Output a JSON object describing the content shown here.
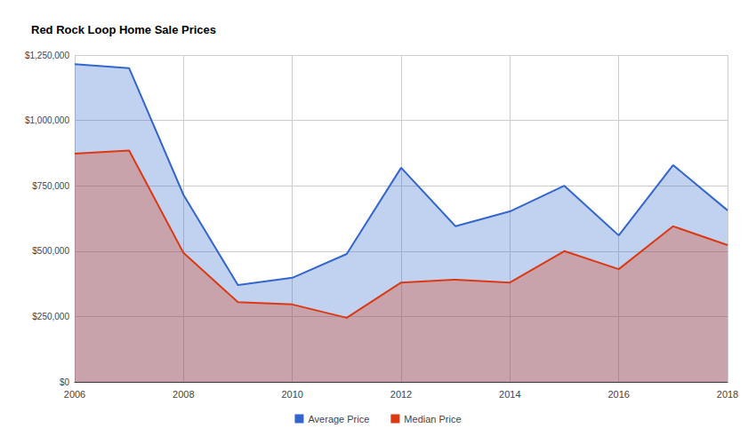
{
  "chart_data": {
    "type": "area",
    "title": "Red Rock Loop Home Sale Prices",
    "x": [
      2006,
      2007,
      2008,
      2009,
      2010,
      2011,
      2012,
      2013,
      2014,
      2015,
      2016,
      2017,
      2018
    ],
    "series": [
      {
        "name": "Average Price",
        "color": "#3366cc",
        "values": [
          1215000,
          1200000,
          715000,
          370000,
          398000,
          489000,
          819000,
          595000,
          652000,
          750000,
          560000,
          829000,
          656000
        ]
      },
      {
        "name": "Median Price",
        "color": "#dc3912",
        "values": [
          873000,
          885000,
          493000,
          305000,
          296000,
          245000,
          380000,
          391000,
          380000,
          500000,
          431000,
          595000,
          523000
        ]
      }
    ],
    "xlim": [
      2006,
      2018
    ],
    "xticks": [
      2006,
      2008,
      2010,
      2012,
      2014,
      2016,
      2018
    ],
    "ylim": [
      0,
      1250000
    ],
    "yticks": [
      {
        "value": 0,
        "label": "$0"
      },
      {
        "value": 250000,
        "label": "$250,000"
      },
      {
        "value": 500000,
        "label": "$500,000"
      },
      {
        "value": 750000,
        "label": "$750,000"
      },
      {
        "value": 1000000,
        "label": "$1,000,000"
      },
      {
        "value": 1250000,
        "label": "$1,250,000"
      }
    ],
    "grid": true,
    "legend": "bottom"
  }
}
